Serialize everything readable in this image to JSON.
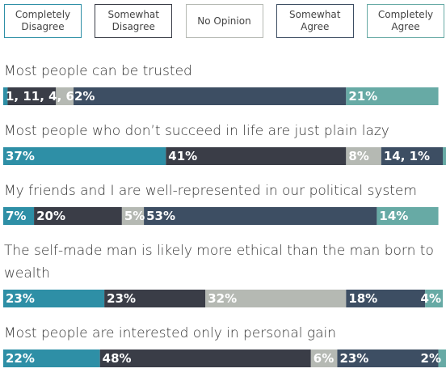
{
  "chart_data": {
    "type": "stacked-bar-100",
    "categories": [
      "Most people can be trusted",
      "Most people who don’t succeed in life are just plain lazy",
      "My friends and I are well-represented in our political system",
      "The self-made man is likely more ethical than the man born to wealth",
      "Most people are interested only in personal gain"
    ],
    "xlim": [
      0,
      100
    ],
    "series": [
      {
        "name": "Completely Disagree",
        "color": "#2e8fa6",
        "values": [
          1,
          37,
          7,
          23,
          22
        ],
        "value_labels": [
          "1, 11, 4, 62%",
          "37%",
          "7%",
          "23%",
          "22%"
        ]
      },
      {
        "name": "Somewhat Disagree",
        "color": "#3a3d47",
        "values": [
          11,
          41,
          20,
          23,
          48
        ],
        "value_labels": [
          null,
          "41%",
          "20%",
          "23%",
          "48%"
        ]
      },
      {
        "name": "No Opinion",
        "color": "#b5b9b3",
        "values": [
          4,
          8,
          5,
          32,
          6
        ],
        "value_labels": [
          null,
          "8%",
          "5%",
          "32%",
          "6%"
        ]
      },
      {
        "name": "Somewhat Agree",
        "color": "#3d4e63",
        "values": [
          62,
          14,
          53,
          18,
          23
        ],
        "value_labels": [
          null,
          "14, 1%",
          "53%",
          "18%",
          "23%"
        ]
      },
      {
        "name": "Completely Agree",
        "color": "#67aaa5",
        "values": [
          21,
          1,
          14,
          4,
          2
        ],
        "value_labels": [
          "21%",
          null,
          "14%",
          "4%",
          "2%"
        ]
      }
    ]
  }
}
